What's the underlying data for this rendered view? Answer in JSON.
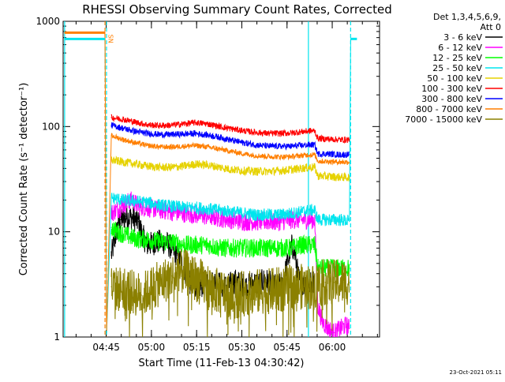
{
  "chart_data": {
    "type": "line",
    "title": "RHESSI Observing Summary Count Rates, Corrected",
    "xlabel": "Start Time (11-Feb-13 04:30:42)",
    "ylabel": "Corrected Count Rate (s⁻¹ detector⁻¹)",
    "yscale": "log",
    "ylim": [
      1,
      1000
    ],
    "y_ticks": [
      {
        "value": 1,
        "label": "1"
      },
      {
        "value": 10,
        "label": "10"
      },
      {
        "value": 100,
        "label": "100"
      },
      {
        "value": 1000,
        "label": "1000"
      }
    ],
    "x_unit": "minutes after 04:30:42",
    "xlim": [
      0,
      105
    ],
    "x_ticks": [
      {
        "t": 14.3,
        "label": "04:45"
      },
      {
        "t": 29.3,
        "label": "05:00"
      },
      {
        "t": 44.3,
        "label": "05:15"
      },
      {
        "t": 59.3,
        "label": "05:30"
      },
      {
        "t": 74.3,
        "label": "05:45"
      },
      {
        "t": 89.3,
        "label": "06:00"
      }
    ],
    "grid": false,
    "legend_header": [
      "Det 1,3,4,5,6,9,",
      "Att 0"
    ],
    "legend_position": "right",
    "annotations": [
      {
        "text": "SN",
        "t": 15.8,
        "value": 750,
        "color": "#ff7f00"
      }
    ],
    "vertical_markers": [
      {
        "t": 0.5,
        "color": "#00e5ee",
        "style": "solid"
      },
      {
        "t": 13.9,
        "color": "#ff7f00",
        "style": "dashed"
      },
      {
        "t": 14.4,
        "color": "#00e5ee",
        "style": "dashed"
      },
      {
        "t": 81.4,
        "color": "#00e5ee",
        "style": "solid"
      },
      {
        "t": 95.4,
        "color": "#00e5ee",
        "style": "dashed"
      }
    ],
    "series": [
      {
        "name": "3 - 6 keV",
        "color": "#000000",
        "noise": 0.12,
        "points": [
          [
            16,
            6
          ],
          [
            17,
            8
          ],
          [
            18,
            11
          ],
          [
            19,
            13
          ],
          [
            21,
            14
          ],
          [
            23,
            13.5
          ],
          [
            25,
            12.5
          ],
          [
            26.5,
            9
          ],
          [
            28,
            7.5
          ],
          [
            31,
            8
          ],
          [
            34,
            8
          ],
          [
            36,
            7
          ],
          [
            38,
            6
          ],
          [
            40,
            4.5
          ],
          [
            42,
            3.3
          ],
          [
            44,
            3.1
          ],
          [
            45.5,
            3
          ],
          [
            47,
            3.3
          ],
          [
            49,
            3.2
          ],
          [
            51,
            3.4
          ],
          [
            53,
            3
          ],
          [
            55,
            3.1
          ],
          [
            57,
            3.4
          ],
          [
            59,
            3.2
          ],
          [
            61,
            3
          ],
          [
            63,
            3.3
          ],
          [
            65,
            3.2
          ],
          [
            67,
            3.5
          ],
          [
            69,
            3.2
          ],
          [
            71,
            3
          ],
          [
            73,
            3.2
          ],
          [
            74,
            4.5
          ],
          [
            75,
            6
          ],
          [
            76,
            7.5
          ],
          [
            77,
            6
          ],
          [
            78,
            3.8
          ],
          [
            79,
            3
          ],
          [
            80,
            3.2
          ],
          [
            81,
            3.5
          ],
          [
            82,
            3.2
          ],
          [
            83.5,
            3.5
          ]
        ]
      },
      {
        "name": "6 - 12 keV",
        "color": "#ff00ff",
        "noise": 0.09,
        "points": [
          [
            16,
            15
          ],
          [
            19,
            17
          ],
          [
            21,
            19
          ],
          [
            23,
            20
          ],
          [
            25,
            17.5
          ],
          [
            27,
            17
          ],
          [
            30,
            16.5
          ],
          [
            33,
            16
          ],
          [
            36,
            15.5
          ],
          [
            40,
            15
          ],
          [
            44,
            14.5
          ],
          [
            48,
            14
          ],
          [
            52,
            13.5
          ],
          [
            56,
            13
          ],
          [
            60,
            12.5
          ],
          [
            64,
            12.5
          ],
          [
            68,
            12.5
          ],
          [
            72,
            12.5
          ],
          [
            76,
            13
          ],
          [
            79,
            13
          ],
          [
            82,
            13
          ],
          [
            83.5,
            13
          ],
          [
            84.5,
            2
          ],
          [
            86,
            1.4
          ],
          [
            88,
            1.2
          ],
          [
            90,
            1.1
          ],
          [
            92,
            1.2
          ],
          [
            94,
            1.3
          ],
          [
            95,
            1.2
          ]
        ]
      },
      {
        "name": "12 - 25 keV",
        "color": "#00ff00",
        "noise": 0.09,
        "points": [
          [
            16,
            11
          ],
          [
            18,
            10
          ],
          [
            20,
            9.5
          ],
          [
            22,
            9
          ],
          [
            25,
            8.5
          ],
          [
            28,
            8.5
          ],
          [
            32,
            8
          ],
          [
            36,
            8
          ],
          [
            40,
            7.5
          ],
          [
            44,
            7.5
          ],
          [
            48,
            7.5
          ],
          [
            52,
            7
          ],
          [
            56,
            7
          ],
          [
            60,
            7
          ],
          [
            64,
            7
          ],
          [
            68,
            7
          ],
          [
            72,
            7
          ],
          [
            76,
            7
          ],
          [
            79,
            7.5
          ],
          [
            82,
            7.5
          ],
          [
            83.5,
            7.5
          ],
          [
            84.5,
            4.5
          ],
          [
            87,
            4.5
          ],
          [
            90,
            4.5
          ],
          [
            93,
            4.5
          ],
          [
            95,
            4.5
          ]
        ]
      },
      {
        "name": "25 - 50 keV",
        "color": "#00e5ee",
        "noise": 0.06,
        "points": [
          [
            0.5,
            680
          ],
          [
            13.9,
            680
          ],
          [
            14.4,
            1
          ],
          [
            16,
            21
          ],
          [
            20,
            20
          ],
          [
            24,
            19.5
          ],
          [
            28,
            19
          ],
          [
            32,
            18
          ],
          [
            36,
            17.5
          ],
          [
            40,
            17
          ],
          [
            44,
            17
          ],
          [
            48,
            16.5
          ],
          [
            52,
            16
          ],
          [
            56,
            15.5
          ],
          [
            60,
            15
          ],
          [
            64,
            14.5
          ],
          [
            68,
            14.5
          ],
          [
            72,
            14.5
          ],
          [
            76,
            15
          ],
          [
            79,
            15.5
          ],
          [
            82,
            16
          ],
          [
            83.5,
            16
          ],
          [
            84.5,
            13
          ],
          [
            88,
            13
          ],
          [
            92,
            13
          ],
          [
            95,
            12.5
          ],
          [
            95.4,
            680
          ],
          [
            97,
            680
          ]
        ]
      },
      {
        "name": "50 - 100 keV",
        "color": "#e6d200",
        "noise": 0.04,
        "points": [
          [
            16,
            48
          ],
          [
            20,
            46
          ],
          [
            24,
            44
          ],
          [
            28,
            42
          ],
          [
            32,
            41
          ],
          [
            36,
            41
          ],
          [
            40,
            42
          ],
          [
            44,
            44
          ],
          [
            48,
            43
          ],
          [
            52,
            41
          ],
          [
            56,
            39
          ],
          [
            60,
            38
          ],
          [
            64,
            37.5
          ],
          [
            68,
            37.5
          ],
          [
            72,
            38
          ],
          [
            76,
            39
          ],
          [
            79,
            40
          ],
          [
            82,
            41
          ],
          [
            83.5,
            41
          ],
          [
            84.5,
            34
          ],
          [
            88,
            33.5
          ],
          [
            92,
            33
          ],
          [
            95,
            33
          ]
        ]
      },
      {
        "name": "100 - 300 keV",
        "color": "#ff0000",
        "noise": 0.03,
        "points": [
          [
            16,
            122
          ],
          [
            20,
            117
          ],
          [
            24,
            110
          ],
          [
            28,
            104
          ],
          [
            32,
            102
          ],
          [
            36,
            103
          ],
          [
            40,
            106
          ],
          [
            44,
            109
          ],
          [
            48,
            106
          ],
          [
            52,
            100
          ],
          [
            56,
            95
          ],
          [
            60,
            91
          ],
          [
            64,
            88
          ],
          [
            68,
            86
          ],
          [
            72,
            86
          ],
          [
            76,
            87
          ],
          [
            79,
            89
          ],
          [
            82,
            91
          ],
          [
            83.5,
            91
          ],
          [
            84.5,
            77
          ],
          [
            88,
            76
          ],
          [
            92,
            75
          ],
          [
            95,
            75
          ]
        ]
      },
      {
        "name": "300 - 800 keV",
        "color": "#0000ff",
        "noise": 0.03,
        "points": [
          [
            16,
            103
          ],
          [
            20,
            96
          ],
          [
            24,
            90
          ],
          [
            28,
            86
          ],
          [
            32,
            84
          ],
          [
            36,
            84
          ],
          [
            40,
            85
          ],
          [
            44,
            86
          ],
          [
            48,
            83
          ],
          [
            52,
            79
          ],
          [
            56,
            74
          ],
          [
            60,
            70
          ],
          [
            64,
            67
          ],
          [
            68,
            65
          ],
          [
            72,
            65
          ],
          [
            76,
            65
          ],
          [
            79,
            66
          ],
          [
            82,
            67
          ],
          [
            83.5,
            67
          ],
          [
            84.5,
            55
          ],
          [
            88,
            55
          ],
          [
            92,
            54
          ],
          [
            95,
            54
          ]
        ]
      },
      {
        "name": "800 - 7000 keV",
        "color": "#ff7f00",
        "noise": 0.025,
        "points": [
          [
            0.5,
            780
          ],
          [
            13.9,
            780
          ],
          [
            14.4,
            1
          ],
          [
            16,
            82
          ],
          [
            20,
            75
          ],
          [
            24,
            70
          ],
          [
            28,
            66
          ],
          [
            32,
            64
          ],
          [
            36,
            64
          ],
          [
            40,
            65
          ],
          [
            44,
            66
          ],
          [
            48,
            64
          ],
          [
            52,
            61
          ],
          [
            56,
            58
          ],
          [
            60,
            55
          ],
          [
            64,
            53
          ],
          [
            68,
            52
          ],
          [
            72,
            51.5
          ],
          [
            76,
            52
          ],
          [
            79,
            53
          ],
          [
            82,
            54
          ],
          [
            83.5,
            54
          ],
          [
            84.5,
            47
          ],
          [
            88,
            46.5
          ],
          [
            92,
            46
          ],
          [
            95,
            46
          ]
        ]
      },
      {
        "name": "7000 - 15000 keV",
        "color": "#8b8000",
        "noise": 0.22,
        "points": [
          [
            16,
            3
          ],
          [
            18,
            2.8
          ],
          [
            20,
            3
          ],
          [
            22,
            2.7
          ],
          [
            24,
            2.6
          ],
          [
            26,
            2.5
          ],
          [
            28,
            2.7
          ],
          [
            30,
            3
          ],
          [
            32,
            3.2
          ],
          [
            34,
            3.5
          ],
          [
            36,
            3.8
          ],
          [
            38,
            4
          ],
          [
            40,
            4.2
          ],
          [
            42,
            3.9
          ],
          [
            44,
            3.6
          ],
          [
            46,
            3.3
          ],
          [
            48,
            3
          ],
          [
            50,
            2.8
          ],
          [
            52,
            2.7
          ],
          [
            54,
            2.6
          ],
          [
            56,
            2.5
          ],
          [
            58,
            2.5
          ],
          [
            60,
            2.6
          ],
          [
            62,
            2.6
          ],
          [
            64,
            2.7
          ],
          [
            66,
            2.7
          ],
          [
            68,
            2.7
          ],
          [
            70,
            2.8
          ],
          [
            72,
            2.8
          ],
          [
            74,
            2.9
          ],
          [
            76,
            3
          ],
          [
            78,
            3
          ],
          [
            80,
            3
          ],
          [
            82,
            3
          ],
          [
            83.5,
            3
          ],
          [
            84.5,
            3.3
          ],
          [
            87,
            3.3
          ],
          [
            90,
            3.3
          ],
          [
            93,
            3.3
          ],
          [
            95,
            3.3
          ]
        ]
      }
    ],
    "footer_stamp": "23-Oct-2021 05:11"
  }
}
